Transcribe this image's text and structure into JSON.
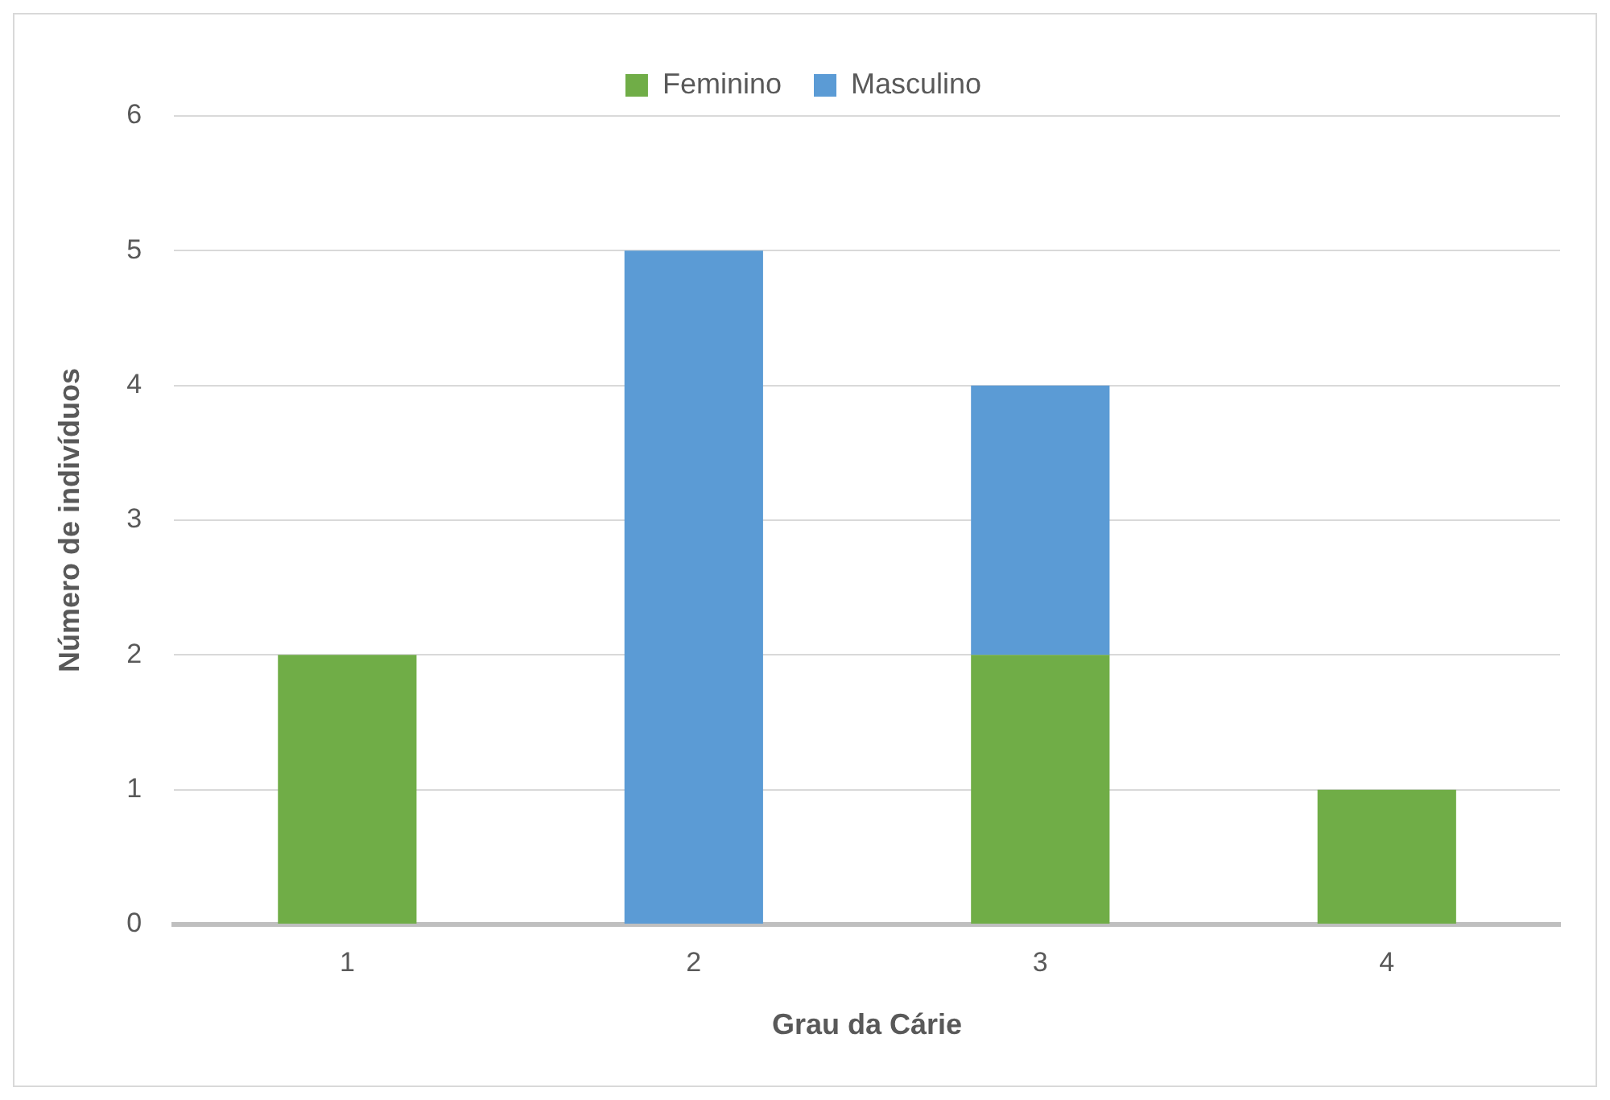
{
  "chart_data": {
    "type": "bar",
    "stacked": true,
    "categories": [
      "1",
      "2",
      "3",
      "4"
    ],
    "series": [
      {
        "name": "Feminino",
        "color": "#70ad47",
        "values": [
          2,
          0,
          2,
          1
        ]
      },
      {
        "name": "Masculino",
        "color": "#5b9bd5",
        "values": [
          0,
          5,
          2,
          0
        ]
      }
    ],
    "xlabel": "Grau da Cárie",
    "ylabel": "Número de indivíduos",
    "ylim": [
      0,
      6
    ],
    "yticks": [
      0,
      1,
      2,
      3,
      4,
      5,
      6
    ],
    "grid": "y",
    "legend": "top"
  }
}
